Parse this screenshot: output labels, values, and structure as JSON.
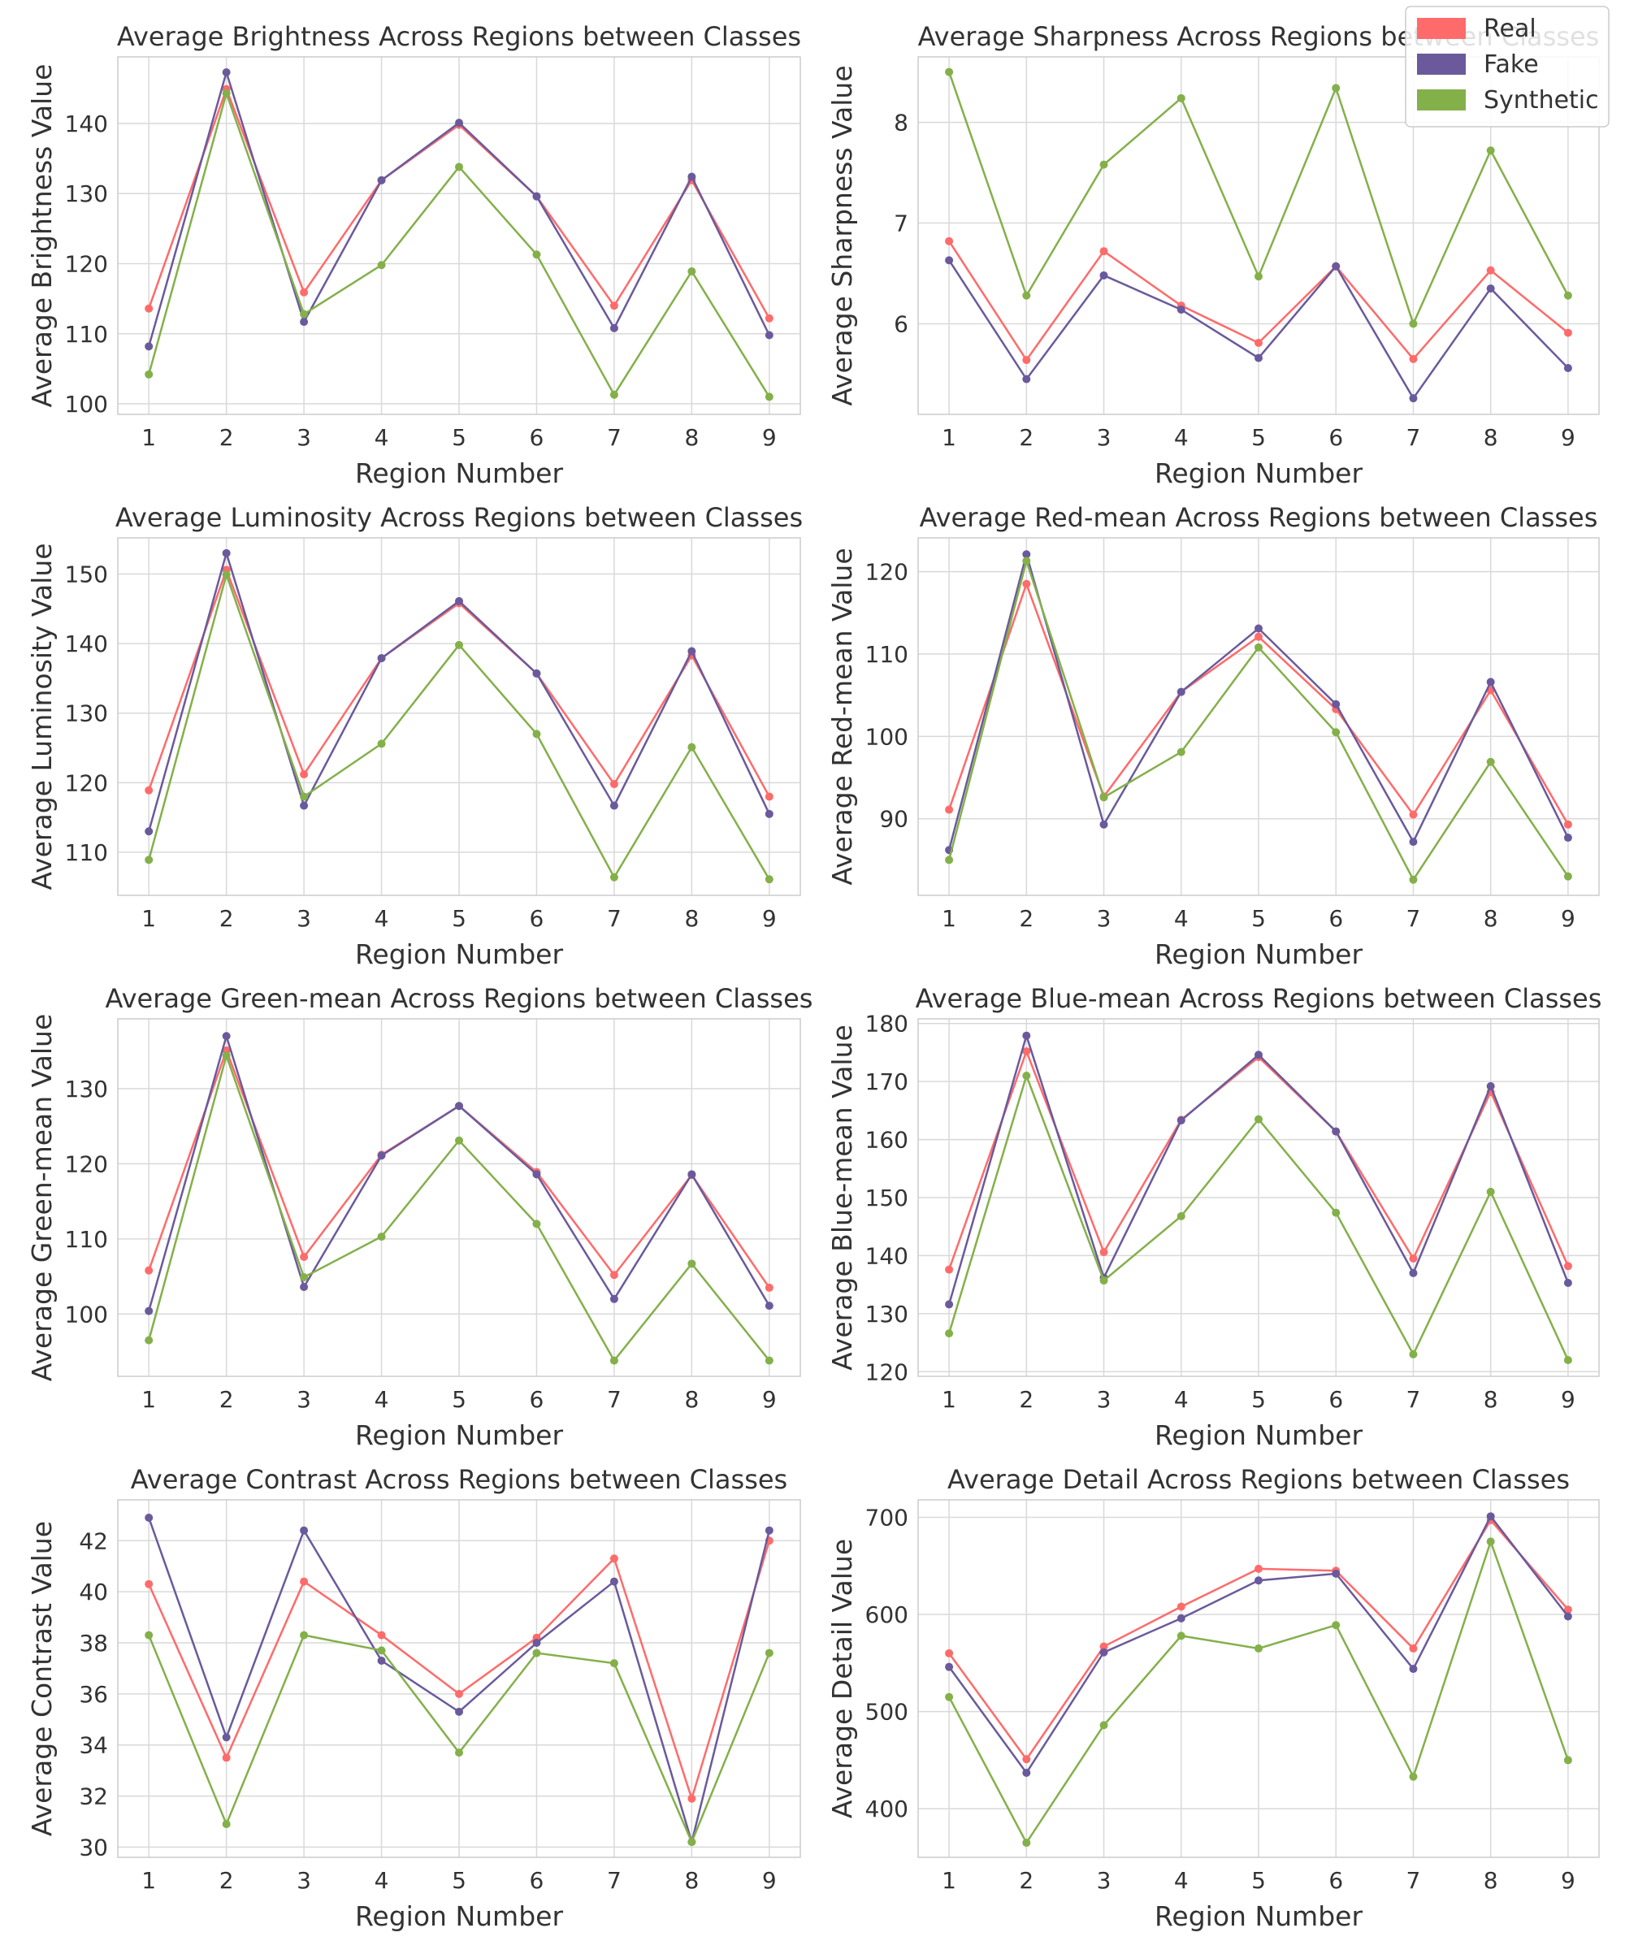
{
  "series_styles": [
    {
      "name": "Real",
      "color": "#FF6B6B"
    },
    {
      "name": "Fake",
      "color": "#6A5A9C"
    },
    {
      "name": "Synthetic",
      "color": "#84B04A"
    }
  ],
  "legend": {
    "placement": "top-right",
    "entries": [
      "Real",
      "Fake",
      "Synthetic"
    ]
  },
  "chart_data": [
    {
      "type": "line",
      "title": "Average Brightness Across Regions between Classes",
      "xlabel": "Region Number",
      "ylabel": "Average Brightness Value",
      "x": [
        1,
        2,
        3,
        4,
        5,
        6,
        7,
        8,
        9
      ],
      "ylim": [
        98.5,
        149.5
      ],
      "yticks": [
        100,
        110,
        120,
        130,
        140
      ],
      "series": [
        {
          "name": "Real",
          "values": [
            113.6,
            144.9,
            115.9,
            131.9,
            139.8,
            129.6,
            114.0,
            131.9,
            112.2
          ]
        },
        {
          "name": "Fake",
          "values": [
            108.2,
            147.3,
            111.7,
            131.9,
            140.1,
            129.6,
            110.8,
            132.4,
            109.8
          ]
        },
        {
          "name": "Synthetic",
          "values": [
            104.2,
            144.3,
            112.8,
            119.8,
            133.8,
            121.3,
            101.3,
            118.9,
            101.0
          ]
        }
      ]
    },
    {
      "type": "line",
      "title": "Average Sharpness Across Regions between Classes",
      "xlabel": "Region Number",
      "ylabel": "Average Sharpness Value",
      "x": [
        1,
        2,
        3,
        4,
        5,
        6,
        7,
        8,
        9
      ],
      "ylim": [
        5.1,
        8.65
      ],
      "yticks": [
        6,
        7,
        8
      ],
      "series": [
        {
          "name": "Real",
          "values": [
            6.82,
            5.64,
            6.72,
            6.18,
            5.81,
            6.57,
            5.65,
            6.53,
            5.91
          ]
        },
        {
          "name": "Fake",
          "values": [
            6.63,
            5.45,
            6.48,
            6.14,
            5.66,
            6.57,
            5.26,
            6.35,
            5.56
          ]
        },
        {
          "name": "Synthetic",
          "values": [
            8.5,
            6.28,
            7.58,
            8.24,
            6.47,
            8.34,
            6.0,
            7.72,
            6.28
          ]
        }
      ]
    },
    {
      "type": "line",
      "title": "Average Luminosity Across Regions between Classes",
      "xlabel": "Region Number",
      "ylabel": "Average Luminosity Value",
      "x": [
        1,
        2,
        3,
        4,
        5,
        6,
        7,
        8,
        9
      ],
      "ylim": [
        103.8,
        155.2
      ],
      "yticks": [
        110,
        120,
        130,
        140,
        150
      ],
      "series": [
        {
          "name": "Real",
          "values": [
            118.9,
            150.6,
            121.2,
            137.9,
            145.8,
            135.7,
            119.8,
            138.3,
            118.0
          ]
        },
        {
          "name": "Fake",
          "values": [
            113.0,
            153.0,
            116.7,
            137.9,
            146.1,
            135.7,
            116.7,
            138.9,
            115.5
          ]
        },
        {
          "name": "Synthetic",
          "values": [
            108.9,
            149.9,
            118.0,
            125.6,
            139.8,
            127.0,
            106.4,
            125.1,
            106.1
          ]
        }
      ]
    },
    {
      "type": "line",
      "title": "Average Red-mean Across Regions between Classes",
      "xlabel": "Region Number",
      "ylabel": "Average Red-mean Value",
      "x": [
        1,
        2,
        3,
        4,
        5,
        6,
        7,
        8,
        9
      ],
      "ylim": [
        80.7,
        124.1
      ],
      "yticks": [
        90,
        100,
        110,
        120
      ],
      "series": [
        {
          "name": "Real",
          "values": [
            91.1,
            118.5,
            92.7,
            105.4,
            112.1,
            103.3,
            90.5,
            105.6,
            89.3
          ]
        },
        {
          "name": "Fake",
          "values": [
            86.2,
            122.1,
            89.3,
            105.4,
            113.1,
            103.9,
            87.2,
            106.6,
            87.7
          ]
        },
        {
          "name": "Synthetic",
          "values": [
            85.0,
            121.3,
            92.6,
            98.1,
            110.8,
            100.5,
            82.6,
            96.9,
            83.0
          ]
        }
      ]
    },
    {
      "type": "line",
      "title": "Average Green-mean Across Regions between Classes",
      "xlabel": "Region Number",
      "ylabel": "Average Green-mean Value",
      "x": [
        1,
        2,
        3,
        4,
        5,
        6,
        7,
        8,
        9
      ],
      "ylim": [
        91.7,
        139.3
      ],
      "yticks": [
        100,
        110,
        120,
        130
      ],
      "series": [
        {
          "name": "Real",
          "values": [
            105.8,
            135.1,
            107.6,
            121.2,
            127.7,
            118.9,
            105.2,
            118.5,
            103.5
          ]
        },
        {
          "name": "Fake",
          "values": [
            100.4,
            137.0,
            103.6,
            121.1,
            127.7,
            118.6,
            102.0,
            118.6,
            101.1
          ]
        },
        {
          "name": "Synthetic",
          "values": [
            96.5,
            134.4,
            104.9,
            110.3,
            123.1,
            112.0,
            93.8,
            106.7,
            93.8
          ]
        }
      ]
    },
    {
      "type": "line",
      "title": "Average Blue-mean Across Regions between Classes",
      "xlabel": "Region Number",
      "ylabel": "Average Blue-mean Value",
      "x": [
        1,
        2,
        3,
        4,
        5,
        6,
        7,
        8,
        9
      ],
      "ylim": [
        119.2,
        180.8
      ],
      "yticks": [
        120,
        130,
        140,
        150,
        160,
        170,
        180
      ],
      "series": [
        {
          "name": "Real",
          "values": [
            137.6,
            175.2,
            140.6,
            163.4,
            174.2,
            161.4,
            139.5,
            168.2,
            138.2
          ]
        },
        {
          "name": "Fake",
          "values": [
            131.6,
            177.9,
            136.2,
            163.3,
            174.6,
            161.4,
            137.0,
            169.2,
            135.3
          ]
        },
        {
          "name": "Synthetic",
          "values": [
            126.6,
            171.0,
            135.7,
            146.8,
            163.5,
            147.4,
            123.0,
            151.0,
            122.0
          ]
        }
      ]
    },
    {
      "type": "line",
      "title": "Average Contrast Across Regions between Classes",
      "xlabel": "Region Number",
      "ylabel": "Average Contrast Value",
      "x": [
        1,
        2,
        3,
        4,
        5,
        6,
        7,
        8,
        9
      ],
      "ylim": [
        29.6,
        43.6
      ],
      "yticks": [
        30,
        32,
        34,
        36,
        38,
        40,
        42
      ],
      "series": [
        {
          "name": "Real",
          "values": [
            40.3,
            33.5,
            40.4,
            38.3,
            36.0,
            38.2,
            41.3,
            31.9,
            42.0
          ]
        },
        {
          "name": "Fake",
          "values": [
            42.9,
            34.3,
            42.4,
            37.3,
            35.3,
            38.0,
            40.4,
            30.2,
            42.4
          ]
        },
        {
          "name": "Synthetic",
          "values": [
            38.3,
            30.9,
            38.3,
            37.7,
            33.7,
            37.6,
            37.2,
            30.2,
            37.6
          ]
        }
      ]
    },
    {
      "type": "line",
      "title": "Average Detail Across Regions between Classes",
      "xlabel": "Region Number",
      "ylabel": "Average Detail Value",
      "x": [
        1,
        2,
        3,
        4,
        5,
        6,
        7,
        8,
        9
      ],
      "ylim": [
        350,
        718
      ],
      "yticks": [
        400,
        500,
        600,
        700
      ],
      "series": [
        {
          "name": "Real",
          "values": [
            560,
            451,
            567,
            608,
            647,
            645,
            565,
            697,
            605
          ]
        },
        {
          "name": "Fake",
          "values": [
            546,
            437,
            561,
            596,
            635,
            642,
            544,
            701,
            598
          ]
        },
        {
          "name": "Synthetic",
          "values": [
            515,
            365,
            486,
            578,
            565,
            589,
            433,
            675,
            450
          ]
        }
      ]
    }
  ]
}
